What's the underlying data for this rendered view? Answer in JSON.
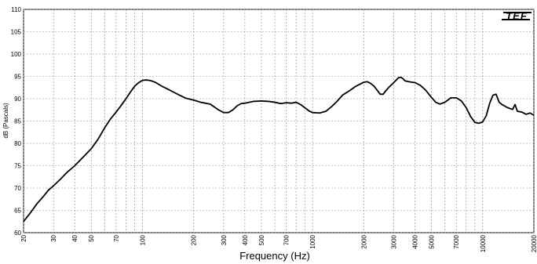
{
  "chart_data": {
    "type": "line",
    "xscale": "log",
    "xlim": [
      20,
      20000
    ],
    "ylim": [
      60,
      110
    ],
    "grid": true,
    "xlabel": "Frequency (Hz)",
    "ylabel": "dB (Pascals)",
    "logo_text": "TEF",
    "y_ticks": [
      60,
      65,
      70,
      75,
      80,
      85,
      90,
      95,
      100,
      105,
      110
    ],
    "x_ticks": [
      20,
      30,
      40,
      50,
      70,
      100,
      200,
      300,
      400,
      500,
      700,
      1000,
      2000,
      3000,
      4000,
      5000,
      7000,
      10000,
      20000
    ],
    "x_tick_labels": [
      "20",
      "30",
      "40",
      "50",
      "70",
      "100",
      "200",
      "300",
      "400",
      "500",
      "700",
      "1000",
      "2000",
      "3000",
      "4000",
      "5000",
      "7000",
      "10000",
      "20000"
    ],
    "series": [
      {
        "color": "#000000",
        "x": [
          20,
          22,
          24,
          26,
          28,
          30,
          33,
          36,
          40,
          45,
          50,
          55,
          60,
          65,
          70,
          75,
          80,
          85,
          90,
          95,
          100,
          105,
          110,
          115,
          120,
          130,
          140,
          150,
          165,
          180,
          200,
          220,
          250,
          280,
          300,
          320,
          340,
          360,
          380,
          400,
          450,
          500,
          550,
          600,
          650,
          700,
          750,
          800,
          850,
          900,
          950,
          1000,
          1100,
          1200,
          1300,
          1400,
          1500,
          1650,
          1800,
          2000,
          2100,
          2200,
          2300,
          2500,
          2600,
          2700,
          2800,
          3000,
          3200,
          3300,
          3400,
          3500,
          3700,
          4000,
          4300,
          4600,
          5000,
          5300,
          5600,
          6000,
          6500,
          7000,
          7500,
          8000,
          8500,
          9000,
          9500,
          10000,
          10500,
          11000,
          11500,
          12000,
          12500,
          13000,
          14000,
          15000,
          15500,
          16000,
          17000,
          18000,
          19000,
          20000
        ],
        "y": [
          62.5,
          64.5,
          66.5,
          68.0,
          69.5,
          70.5,
          72.0,
          73.5,
          75.0,
          77.0,
          78.8,
          81.0,
          83.5,
          85.5,
          87.0,
          88.5,
          90.0,
          91.5,
          92.8,
          93.6,
          94.1,
          94.2,
          94.1,
          93.9,
          93.6,
          92.8,
          92.2,
          91.6,
          90.8,
          90.1,
          89.7,
          89.2,
          88.8,
          87.5,
          86.9,
          86.9,
          87.5,
          88.4,
          88.9,
          89.0,
          89.4,
          89.5,
          89.4,
          89.2,
          88.9,
          89.1,
          89.0,
          89.2,
          88.7,
          88.0,
          87.3,
          86.9,
          86.8,
          87.2,
          88.3,
          89.5,
          90.8,
          91.8,
          92.8,
          93.7,
          93.8,
          93.4,
          92.8,
          91.0,
          91.0,
          91.8,
          92.5,
          93.6,
          94.7,
          94.8,
          94.5,
          94.0,
          93.8,
          93.6,
          93.0,
          92.0,
          90.3,
          89.2,
          88.8,
          89.2,
          90.2,
          90.2,
          89.5,
          88.0,
          86.0,
          84.7,
          84.5,
          84.8,
          86.2,
          89.0,
          90.8,
          91.0,
          89.2,
          88.7,
          88.0,
          87.6,
          88.7,
          87.2,
          87.0,
          86.5,
          86.8,
          86.3
        ]
      }
    ]
  }
}
